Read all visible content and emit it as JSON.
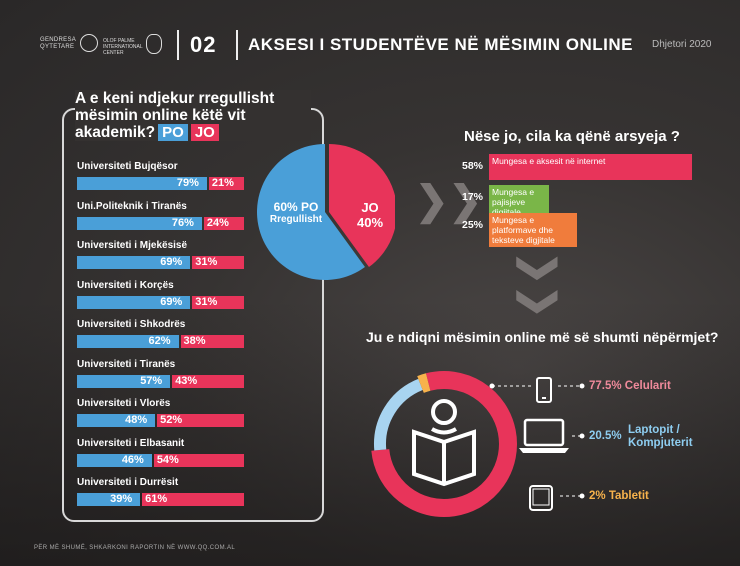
{
  "header": {
    "logo_org": "GENDRESA\nQYTETARE",
    "logo_center": "OLOF PALME\nINTERNATIONAL\nCENTER",
    "number": "02",
    "title": "AKSESI I STUDENTËVE NË MËSIMIN ONLINE",
    "date": "Dhjetori 2020"
  },
  "left_question": {
    "text": "A e keni ndjekur rregullisht mësimin online këtë vit akademik?",
    "tag_po": "PO",
    "tag_jo": "JO"
  },
  "colors": {
    "po": "#4a9fd8",
    "jo": "#e8345a",
    "green": "#7ab648",
    "orange": "#f07c3c"
  },
  "chart_data": [
    {
      "type": "bar",
      "categories": [
        "Universiteti Bujqësor",
        "Uni.Politeknik i Tiranës",
        "Universiteti i Mjekësisë",
        "Universiteti i Korçës",
        "Universiteti i Shkodrës",
        "Universiteti i Tiranës",
        "Universiteti i Vlorës",
        "Universiteti i Elbasanit",
        "Universiteti i Durrësit"
      ],
      "series": [
        {
          "name": "PO",
          "values": [
            79,
            76,
            69,
            69,
            62,
            57,
            48,
            46,
            39
          ],
          "labels": [
            "79%",
            "76%",
            "69%",
            "69%",
            "62%",
            "57%",
            "48%",
            "46%",
            "39%"
          ]
        },
        {
          "name": "JO",
          "values": [
            21,
            24,
            31,
            31,
            38,
            43,
            52,
            54,
            61
          ],
          "labels": [
            "21%",
            "24%",
            "31%",
            "31%",
            "38%",
            "43%",
            "52%",
            "54%",
            "61%"
          ]
        }
      ]
    },
    {
      "type": "pie",
      "slices": [
        {
          "name": "PO",
          "value": 60,
          "label_pct": "60%",
          "label_name": "PO",
          "label_sub": "Rregullisht"
        },
        {
          "name": "JO",
          "value": 40,
          "label_pct": "40%",
          "label_name": "JO"
        }
      ]
    },
    {
      "type": "bar",
      "title": "Nëse jo, cila ka qënë arsyeja ?",
      "categories": [
        "Mungesa e aksesit në internet",
        "Mungesa e pajisjeve digjitale",
        "Mungesa e platformave dhe teksteve digjitale"
      ],
      "values": [
        58,
        17,
        25
      ],
      "labels": [
        "58%",
        "17%",
        "25%"
      ]
    },
    {
      "type": "pie",
      "title": "Ju e ndiqni mësimin online më së shumti nëpërmjet?",
      "slices": [
        {
          "name": "Celularit",
          "value": 77.5,
          "label": "77.5% Celularit"
        },
        {
          "name": "Laptopit / Kompjuterit",
          "value": 20.5,
          "label_pct": "20.5%",
          "label_name": "Laptopit /\nKompjuterit"
        },
        {
          "name": "Tabletit",
          "value": 2,
          "label": "2% Tabletit"
        }
      ]
    }
  ],
  "footer": "PËR MË SHUMË, SHKARKONI RAPORTIN NË WWW.QQ.COM.AL"
}
